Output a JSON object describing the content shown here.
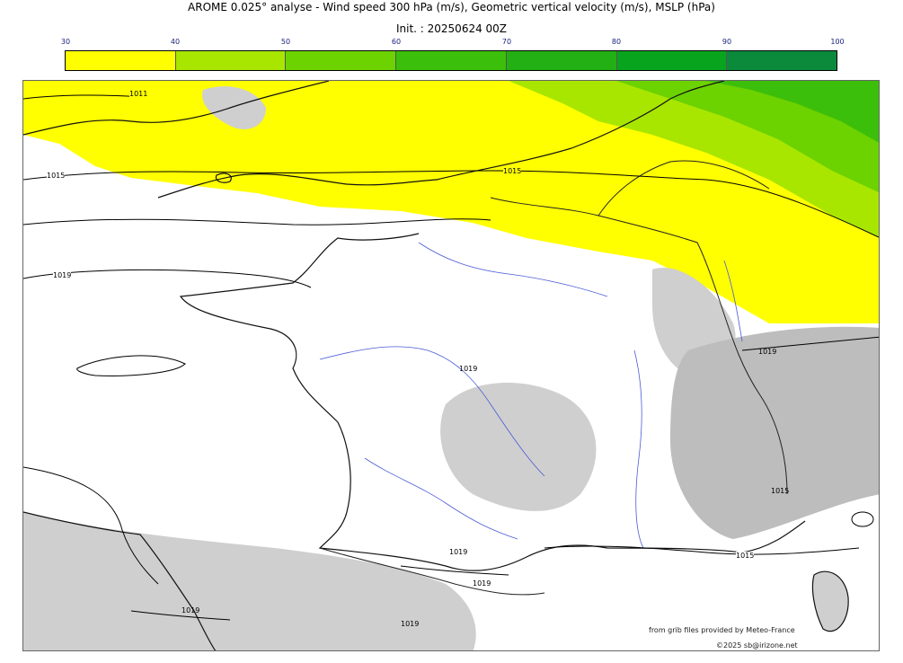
{
  "header": {
    "title": "AROME 0.025° analyse - Wind speed 300 hPa (m/s), Geometric vertical velocity (m/s), MSLP (hPa)",
    "init": "Init. : 20250624 00Z"
  },
  "colorbar": {
    "ticks": [
      "30",
      "40",
      "50",
      "60",
      "70",
      "80",
      "90",
      "100"
    ],
    "colors": [
      "#ffff00",
      "#a8e600",
      "#6cd200",
      "#3cbf0a",
      "#22b014",
      "#08a41e",
      "#0b8a3c",
      "#0b7450"
    ]
  },
  "map": {
    "isobar_labels": [
      "1011",
      "1015",
      "1015",
      "1019",
      "1019",
      "1019",
      "1019",
      "1015",
      "1015",
      "1019",
      "1019",
      "1019"
    ]
  },
  "footer": {
    "source": "from grib files provided by Meteo-France",
    "copyright": "©2025 sb@irizone.net"
  }
}
